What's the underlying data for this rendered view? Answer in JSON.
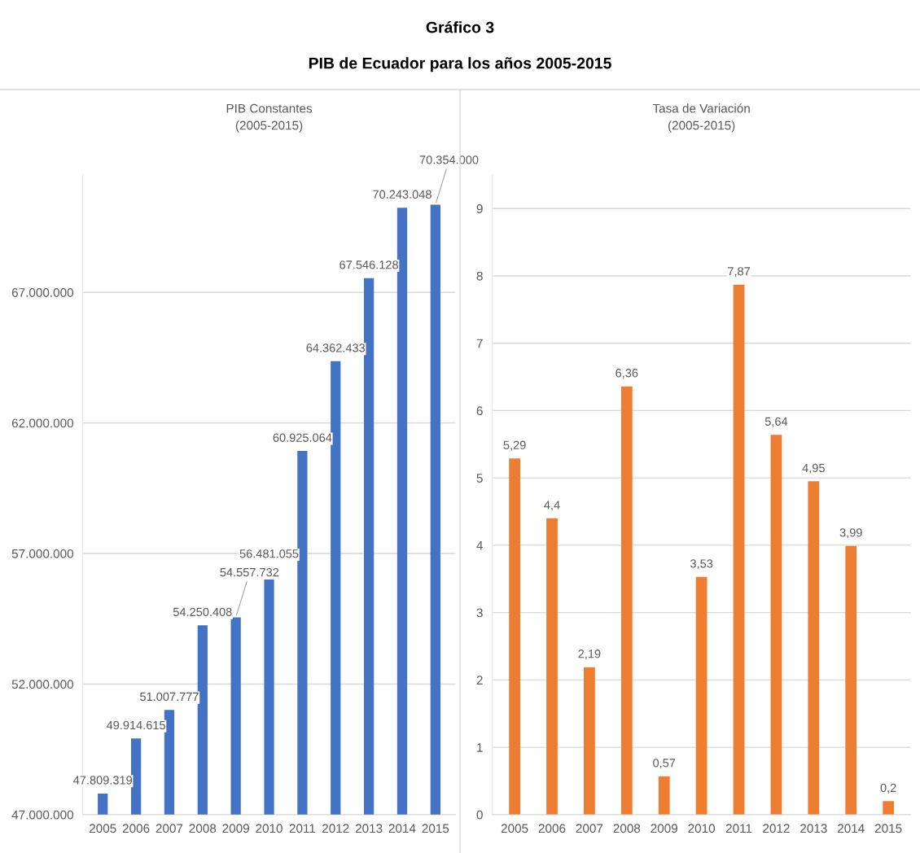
{
  "chart_data": [
    {
      "type": "bar",
      "title": "PIB Constantes\n(2005-2015)",
      "annotations": [
        "Gráfico 3",
        "PIB de Ecuador para los años 2005-2015"
      ],
      "categories": [
        "2005",
        "2006",
        "2007",
        "2008",
        "2009",
        "2010",
        "2011",
        "2012",
        "2013",
        "2014",
        "2015"
      ],
      "values": [
        47809319,
        49914615,
        51007777,
        54250408,
        54557732,
        56481055,
        60925064,
        64362433,
        67546128,
        70243048,
        70354000
      ],
      "value_labels": [
        "47.809.319",
        "49.914.615",
        "51.007.777",
        "54.250.408",
        "54.557.732",
        "56.481.055",
        "60.925.064",
        "64.362.433",
        "67.546.128",
        "70.243.048",
        "70.354.000"
      ],
      "color": "#4472c4",
      "ylim": [
        47000000,
        71500000
      ],
      "yticks": [
        {
          "value": 47000000,
          "label": "47.000.000"
        },
        {
          "value": 52000000,
          "label": "52.000.000"
        },
        {
          "value": 57000000,
          "label": "57.000.000"
        },
        {
          "value": 62000000,
          "label": "62.000.000"
        },
        {
          "value": 67000000,
          "label": "67.000.000"
        }
      ],
      "grid": "y"
    },
    {
      "type": "bar",
      "title": "Tasa de Variación\n(2005-2015)",
      "categories": [
        "2005",
        "2006",
        "2007",
        "2008",
        "2009",
        "2010",
        "2011",
        "2012",
        "2013",
        "2014",
        "2015"
      ],
      "values": [
        5.29,
        4.4,
        2.19,
        6.36,
        0.57,
        3.53,
        7.87,
        5.64,
        4.95,
        3.99,
        0.2
      ],
      "value_labels": [
        "5,29",
        "4,4",
        "2,19",
        "6,36",
        "0,57",
        "3,53",
        "7,87",
        "5,64",
        "4,95",
        "3,99",
        "0,2"
      ],
      "color": "#ed7d31",
      "ylim": [
        0,
        9.5
      ],
      "yticks": [
        0,
        1,
        2,
        3,
        4,
        5,
        6,
        7,
        8,
        9
      ],
      "grid": "y"
    }
  ]
}
